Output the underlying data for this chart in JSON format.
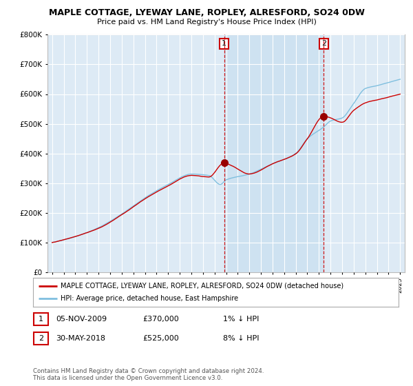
{
  "title": "MAPLE COTTAGE, LYEWAY LANE, ROPLEY, ALRESFORD, SO24 0DW",
  "subtitle": "Price paid vs. HM Land Registry's House Price Index (HPI)",
  "ylim": [
    0,
    800000
  ],
  "yticks": [
    0,
    100000,
    200000,
    300000,
    400000,
    500000,
    600000,
    700000,
    800000
  ],
  "background_color": "#ffffff",
  "plot_bg_color": "#ddeaf5",
  "highlight_color": "#c8dff0",
  "grid_color": "#ffffff",
  "legend_label_red": "MAPLE COTTAGE, LYEWAY LANE, ROPLEY, ALRESFORD, SO24 0DW (detached house)",
  "legend_label_blue": "HPI: Average price, detached house, East Hampshire",
  "sale1_label": "1",
  "sale1_date": "05-NOV-2009",
  "sale1_price": "£370,000",
  "sale1_hpi": "1% ↓ HPI",
  "sale2_label": "2",
  "sale2_date": "30-MAY-2018",
  "sale2_price": "£525,000",
  "sale2_hpi": "8% ↓ HPI",
  "footer": "Contains HM Land Registry data © Crown copyright and database right 2024.\nThis data is licensed under the Open Government Licence v3.0.",
  "sale1_x": 2009.83,
  "sale1_y": 370000,
  "sale2_x": 2018.41,
  "sale2_y": 525000,
  "hpi_color": "#7fbfdf",
  "sale_color": "#cc0000",
  "vline_color": "#cc0000",
  "marker_color": "#990000",
  "xlim_left": 1994.6,
  "xlim_right": 2025.4
}
